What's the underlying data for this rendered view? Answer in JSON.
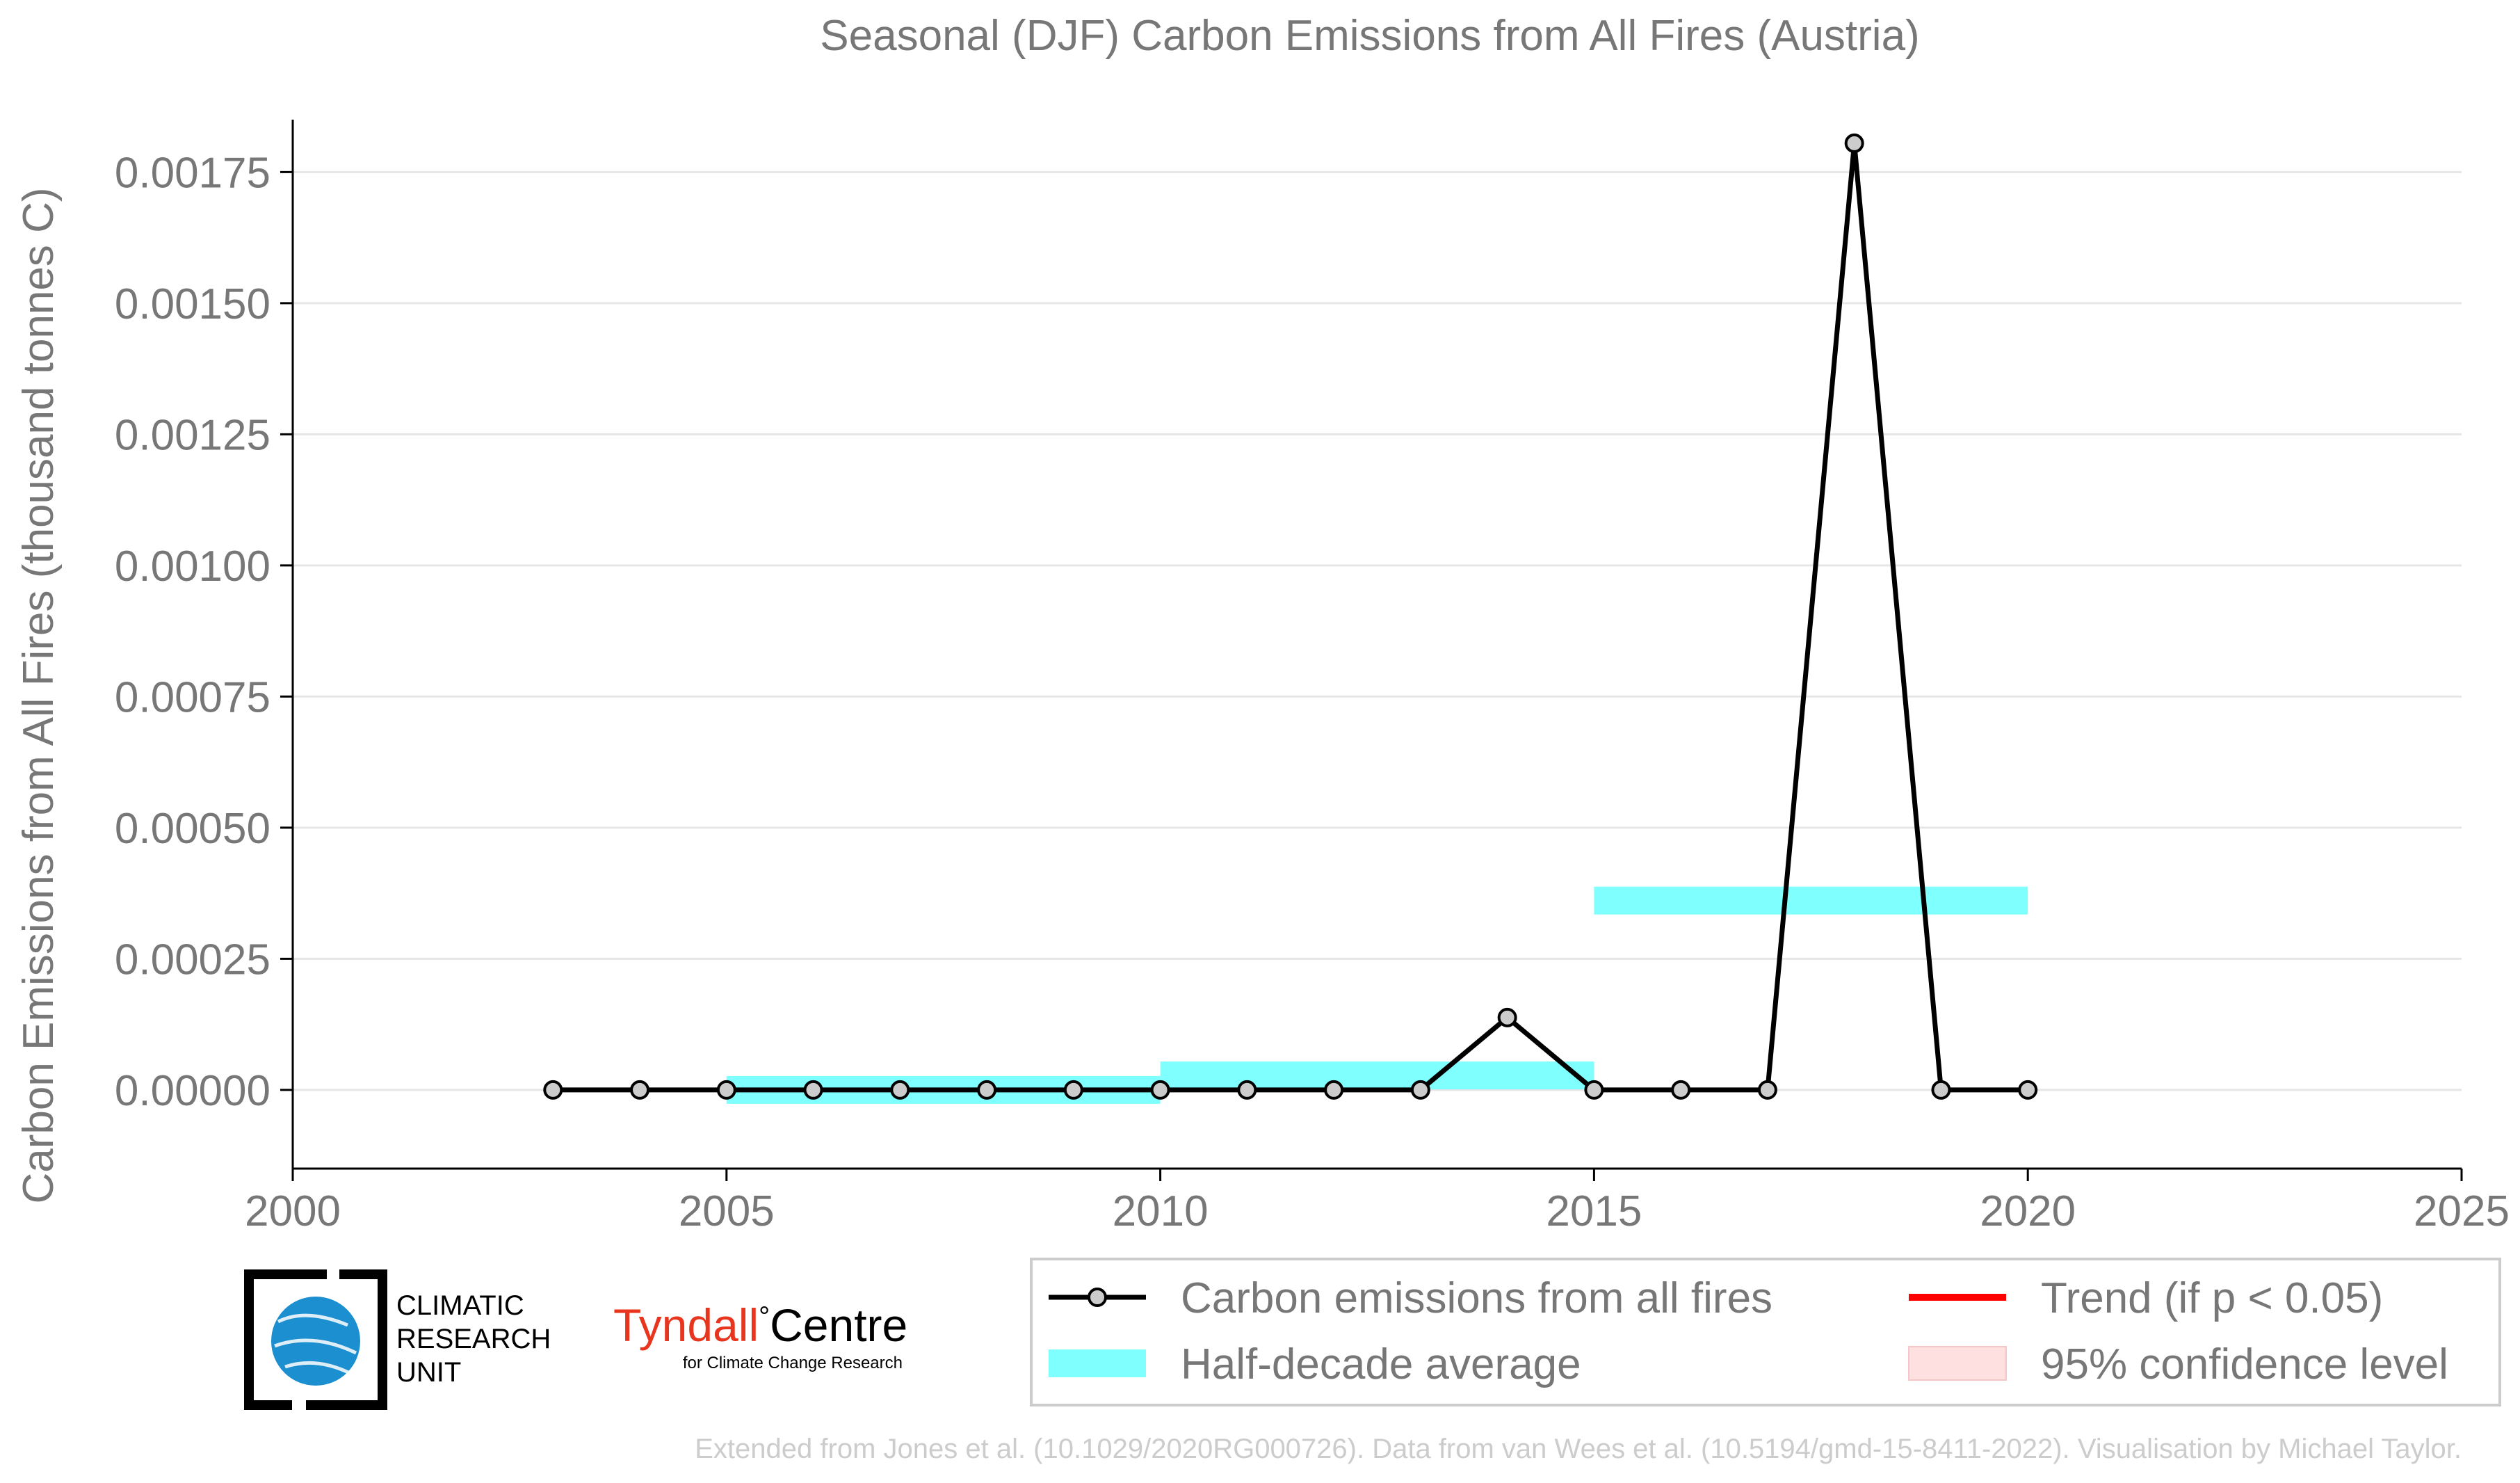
{
  "chart_data": {
    "type": "line",
    "title": "Seasonal (DJF) Carbon Emissions from All Fires (Austria)",
    "xlabel": "",
    "ylabel": "Carbon Emissions from All Fires (thousand tonnes C)",
    "xlim": [
      2000,
      2025
    ],
    "ylim": [
      -0.00015,
      0.00185
    ],
    "x_ticks": [
      2000,
      2005,
      2010,
      2015,
      2020,
      2025
    ],
    "x_tick_labels": [
      "2000",
      "2005",
      "2010",
      "2015",
      "2020",
      "2025"
    ],
    "y_ticks": [
      0,
      0.00025,
      0.0005,
      0.00075,
      0.001,
      0.00125,
      0.0015,
      0.00175
    ],
    "y_tick_labels": [
      "0.00000",
      "0.00025",
      "0.00050",
      "0.00075",
      "0.00100",
      "0.00125",
      "0.00150",
      "0.00175"
    ],
    "grid": "horizontal",
    "series": [
      {
        "name": "Carbon emissions from all fires",
        "color": "#000000",
        "marker_fill": "#cccccc",
        "x": [
          2003,
          2004,
          2005,
          2006,
          2007,
          2008,
          2009,
          2010,
          2011,
          2012,
          2013,
          2014,
          2015,
          2016,
          2017,
          2018,
          2019,
          2020
        ],
        "y": [
          0,
          0,
          0,
          0,
          0,
          0,
          0,
          0,
          0,
          0,
          0,
          0.000138,
          0,
          0,
          0,
          0.001805,
          0,
          0
        ]
      }
    ],
    "half_decade_average": {
      "name": "Half-decade average",
      "color": "#80ffff",
      "segments": [
        {
          "x_start": 2005,
          "x_end": 2010,
          "value": 0.0
        },
        {
          "x_start": 2010,
          "x_end": 2015,
          "value": 2.76e-05
        },
        {
          "x_start": 2015,
          "x_end": 2020,
          "value": 0.000361
        }
      ]
    },
    "legend": {
      "placement": "bottom-right",
      "entries": [
        {
          "label": "Carbon emissions from all fires",
          "kind": "line-marker",
          "color": "#000000"
        },
        {
          "label": "Trend (if p < 0.05)",
          "kind": "line",
          "color": "#ff0000"
        },
        {
          "label": "Half-decade average",
          "kind": "band",
          "color": "#80ffff"
        },
        {
          "label": "95% confidence level",
          "kind": "patch",
          "color": "#ffe0e0"
        }
      ]
    }
  },
  "logos": {
    "cru_lines": [
      "CLIMATIC",
      "RESEARCH",
      "UNIT"
    ],
    "tyndall_main": "Tyndall",
    "tyndall_degree": "°",
    "tyndall_centre": "Centre",
    "tyndall_sub": "for Climate Change Research"
  },
  "credit": "Extended from Jones et al. (10.1029/2020RG000726). Data from van Wees et al. (10.5194/gmd-15-8411-2022). Visualisation by Michael Taylor."
}
